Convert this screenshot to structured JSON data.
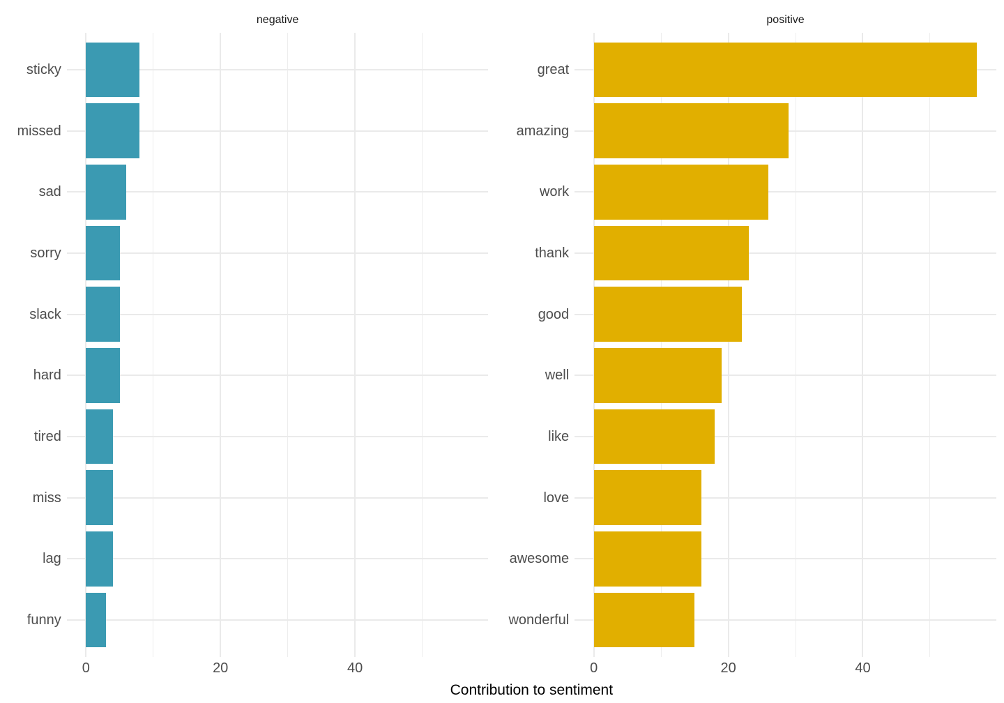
{
  "chart_data": {
    "type": "bar",
    "orientation": "horizontal",
    "xlabel": "Contribution to sentiment",
    "ylabel": "",
    "title": "",
    "xlim": [
      0,
      57
    ],
    "x_major_ticks": [
      0,
      20,
      40
    ],
    "x_minor_ticks": [
      10,
      30,
      50
    ],
    "grid": true,
    "legend": "none",
    "facets": [
      {
        "label": "negative",
        "color": "#3B9AB2",
        "categories": [
          "sticky",
          "missed",
          "sad",
          "sorry",
          "slack",
          "hard",
          "tired",
          "miss",
          "lag",
          "funny"
        ],
        "values": [
          8,
          8,
          6,
          5,
          5,
          5,
          4,
          4,
          4,
          3
        ]
      },
      {
        "label": "positive",
        "color": "#E1AF00",
        "categories": [
          "great",
          "amazing",
          "work",
          "thank",
          "good",
          "well",
          "like",
          "love",
          "awesome",
          "wonderful"
        ],
        "values": [
          57,
          29,
          26,
          23,
          22,
          19,
          18,
          16,
          16,
          15
        ]
      }
    ]
  },
  "colors": {
    "background": "#FFFFFF",
    "gridline": "#EAEAEA",
    "tick_text": "#4D4D4D",
    "strip_text": "#1A1A1A",
    "axis_title_text": "#000000"
  }
}
